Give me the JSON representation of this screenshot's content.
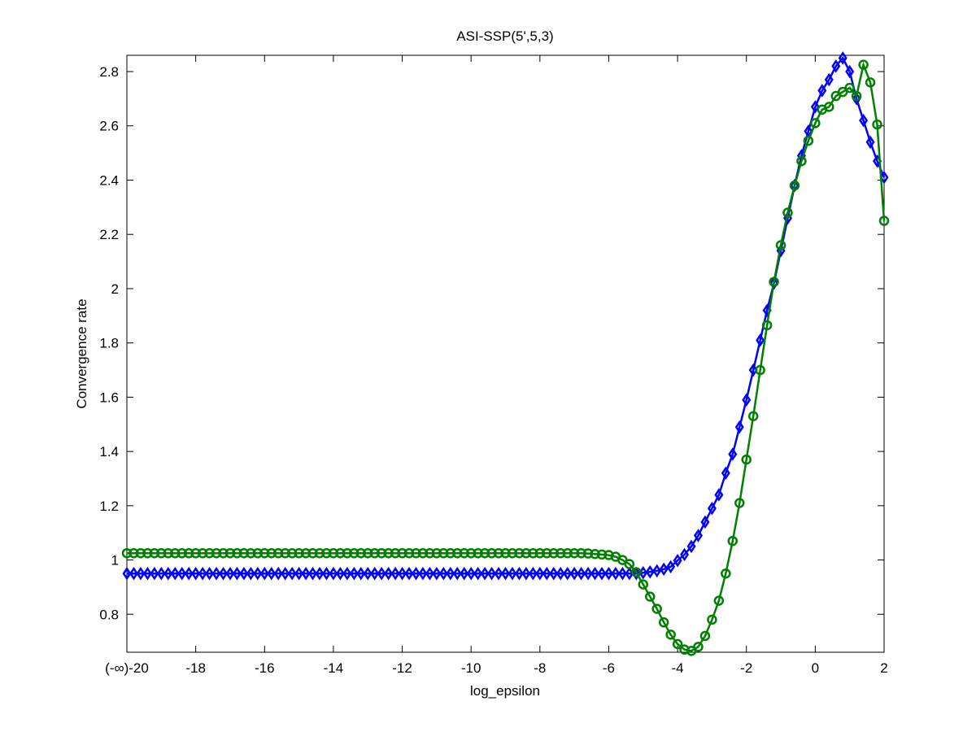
{
  "chart_data": {
    "type": "line",
    "title": "ASI-SSP(5',5,3)",
    "xlabel": "log_epsilon",
    "ylabel": "Convergence rate",
    "xlim": [
      -20,
      2
    ],
    "ylim": [
      0.66,
      2.86
    ],
    "grid": false,
    "legend": "none",
    "x_ticks": [
      -20,
      -18,
      -16,
      -14,
      -12,
      -10,
      -8,
      -6,
      -4,
      -2,
      0,
      2
    ],
    "x_tick_labels": [
      "(-∞)-20",
      "-18",
      "-16",
      "-14",
      "-12",
      "-10",
      "-8",
      "-6",
      "-4",
      "-2",
      "0",
      "2"
    ],
    "y_ticks": [
      0.8,
      1,
      1.2,
      1.4,
      1.6,
      1.8,
      2,
      2.2,
      2.4,
      2.6,
      2.8
    ],
    "y_tick_labels": [
      "0.8",
      "1",
      "1.2",
      "1.4",
      "1.6",
      "1.8",
      "2",
      "2.2",
      "2.4",
      "2.6",
      "2.8"
    ],
    "series": [
      {
        "color": "#0000ff",
        "marker": "diamond",
        "flat_from": -20,
        "flat_to": -5.2,
        "flat_step": 0.2,
        "flat_value": 0.95,
        "points": [
          [
            -5.0,
            0.953
          ],
          [
            -4.8,
            0.956
          ],
          [
            -4.6,
            0.96
          ],
          [
            -4.4,
            0.966
          ],
          [
            -4.2,
            0.975
          ],
          [
            -4.0,
            0.998
          ],
          [
            -3.8,
            1.02
          ],
          [
            -3.6,
            1.05
          ],
          [
            -3.4,
            1.09
          ],
          [
            -3.2,
            1.14
          ],
          [
            -3.0,
            1.19
          ],
          [
            -2.8,
            1.24
          ],
          [
            -2.6,
            1.32
          ],
          [
            -2.4,
            1.39
          ],
          [
            -2.2,
            1.49
          ],
          [
            -2.0,
            1.59
          ],
          [
            -1.8,
            1.7
          ],
          [
            -1.6,
            1.81
          ],
          [
            -1.4,
            1.92
          ],
          [
            -1.2,
            2.02
          ],
          [
            -1.0,
            2.14
          ],
          [
            -0.8,
            2.26
          ],
          [
            -0.6,
            2.38
          ],
          [
            -0.4,
            2.49
          ],
          [
            -0.2,
            2.58
          ],
          [
            0.0,
            2.67
          ],
          [
            0.2,
            2.73
          ],
          [
            0.4,
            2.77
          ],
          [
            0.6,
            2.82
          ],
          [
            0.8,
            2.85
          ],
          [
            1.0,
            2.8
          ],
          [
            1.2,
            2.7
          ],
          [
            1.4,
            2.62
          ],
          [
            1.6,
            2.54
          ],
          [
            1.8,
            2.47
          ],
          [
            2.0,
            2.41
          ]
        ]
      },
      {
        "color": "#007f00",
        "marker": "circle",
        "flat_from": -20,
        "flat_to": -6.8,
        "flat_step": 0.2,
        "flat_value": 1.025,
        "points": [
          [
            -6.6,
            1.024
          ],
          [
            -6.4,
            1.022
          ],
          [
            -6.2,
            1.02
          ],
          [
            -6.0,
            1.018
          ],
          [
            -5.8,
            1.012
          ],
          [
            -5.6,
            1.0
          ],
          [
            -5.4,
            0.985
          ],
          [
            -5.2,
            0.955
          ],
          [
            -5.0,
            0.91
          ],
          [
            -4.8,
            0.865
          ],
          [
            -4.6,
            0.82
          ],
          [
            -4.4,
            0.77
          ],
          [
            -4.2,
            0.725
          ],
          [
            -4.0,
            0.69
          ],
          [
            -3.8,
            0.67
          ],
          [
            -3.6,
            0.665
          ],
          [
            -3.4,
            0.68
          ],
          [
            -3.2,
            0.72
          ],
          [
            -3.0,
            0.78
          ],
          [
            -2.8,
            0.85
          ],
          [
            -2.6,
            0.95
          ],
          [
            -2.4,
            1.07
          ],
          [
            -2.2,
            1.21
          ],
          [
            -2.0,
            1.37
          ],
          [
            -1.8,
            1.53
          ],
          [
            -1.6,
            1.7
          ],
          [
            -1.4,
            1.865
          ],
          [
            -1.2,
            2.025
          ],
          [
            -1.0,
            2.16
          ],
          [
            -0.8,
            2.28
          ],
          [
            -0.6,
            2.38
          ],
          [
            -0.4,
            2.47
          ],
          [
            -0.2,
            2.545
          ],
          [
            0.0,
            2.61
          ],
          [
            0.2,
            2.66
          ],
          [
            0.4,
            2.67
          ],
          [
            0.6,
            2.71
          ],
          [
            0.8,
            2.725
          ],
          [
            1.0,
            2.74
          ],
          [
            1.2,
            2.71
          ],
          [
            1.4,
            2.825
          ],
          [
            1.6,
            2.76
          ],
          [
            1.8,
            2.605
          ],
          [
            2.0,
            2.25
          ]
        ]
      }
    ]
  }
}
